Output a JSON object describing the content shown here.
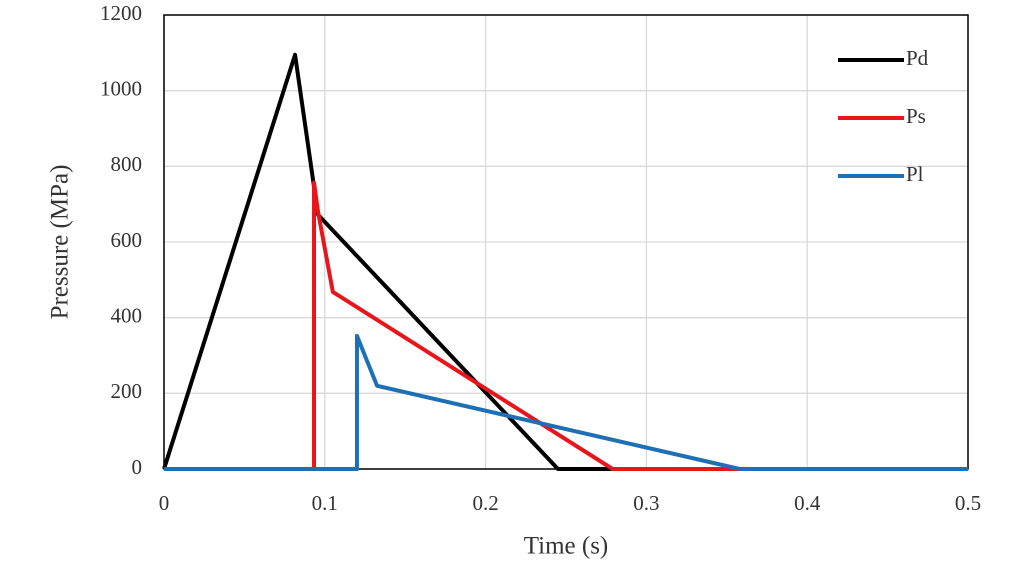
{
  "chart_data": {
    "type": "line",
    "x_label": "Time (s)",
    "y_label": "Pressure (MPa)",
    "series": [
      {
        "name": "Pd",
        "color": "#000000",
        "x": [
          0,
          0.0815,
          0.0815,
          0.0958,
          0.245,
          0.5
        ],
        "values": [
          0,
          1095,
          1095,
          672,
          0,
          0
        ]
      },
      {
        "name": "Ps",
        "color": "#e8151b",
        "x": [
          0,
          0.0933,
          0.0933,
          0.0958,
          0.105,
          0.279,
          0.5
        ],
        "values": [
          0,
          0,
          757,
          680,
          468,
          0,
          0
        ]
      },
      {
        "name": "Pl",
        "color": "#1f6fb5",
        "x": [
          0,
          0.12,
          0.12,
          0.1325,
          0.358,
          0.5
        ],
        "values": [
          0,
          0,
          352,
          220,
          0,
          0
        ]
      }
    ],
    "xlim": [
      0,
      0.5
    ],
    "xticks": [
      0,
      0.1,
      0.2,
      0.3,
      0.4,
      0.5
    ],
    "ylim": [
      0,
      1200
    ],
    "yticks": [
      0,
      200,
      400,
      600,
      800,
      1000,
      1200
    ],
    "grid": true,
    "legend": "upper right"
  }
}
